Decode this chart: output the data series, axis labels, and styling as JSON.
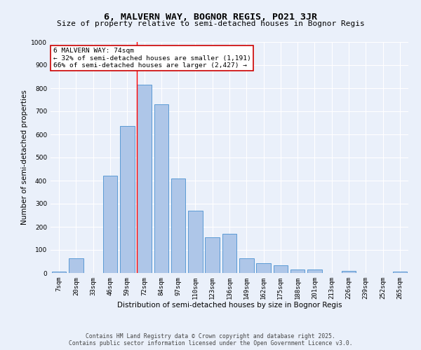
{
  "title": "6, MALVERN WAY, BOGNOR REGIS, PO21 3JR",
  "subtitle": "Size of property relative to semi-detached houses in Bognor Regis",
  "xlabel": "Distribution of semi-detached houses by size in Bognor Regis",
  "ylabel": "Number of semi-detached properties",
  "categories": [
    "7sqm",
    "20sqm",
    "33sqm",
    "46sqm",
    "59sqm",
    "72sqm",
    "84sqm",
    "97sqm",
    "110sqm",
    "123sqm",
    "136sqm",
    "149sqm",
    "162sqm",
    "175sqm",
    "188sqm",
    "201sqm",
    "213sqm",
    "226sqm",
    "239sqm",
    "252sqm",
    "265sqm"
  ],
  "values": [
    5,
    65,
    0,
    420,
    635,
    815,
    730,
    410,
    270,
    155,
    170,
    65,
    42,
    32,
    15,
    15,
    0,
    10,
    0,
    0,
    5
  ],
  "bar_color": "#aec6e8",
  "bar_edge_color": "#5b9bd5",
  "red_line_index": 5,
  "annotation_text_line1": "6 MALVERN WAY: 74sqm",
  "annotation_text_line2": "← 32% of semi-detached houses are smaller (1,191)",
  "annotation_text_line3": "66% of semi-detached houses are larger (2,427) →",
  "ylim": [
    0,
    1000
  ],
  "yticks": [
    0,
    100,
    200,
    300,
    400,
    500,
    600,
    700,
    800,
    900,
    1000
  ],
  "bg_color": "#eaf0fa",
  "plot_bg_color": "#eaf0fa",
  "grid_color": "#ffffff",
  "annotation_box_color": "#ffffff",
  "annotation_box_edge": "#cc0000",
  "footer_line1": "Contains HM Land Registry data © Crown copyright and database right 2025.",
  "footer_line2": "Contains public sector information licensed under the Open Government Licence v3.0.",
  "title_fontsize": 9.5,
  "subtitle_fontsize": 8,
  "axis_label_fontsize": 7.5,
  "tick_fontsize": 6.5,
  "annotation_fontsize": 6.8,
  "footer_fontsize": 5.8
}
